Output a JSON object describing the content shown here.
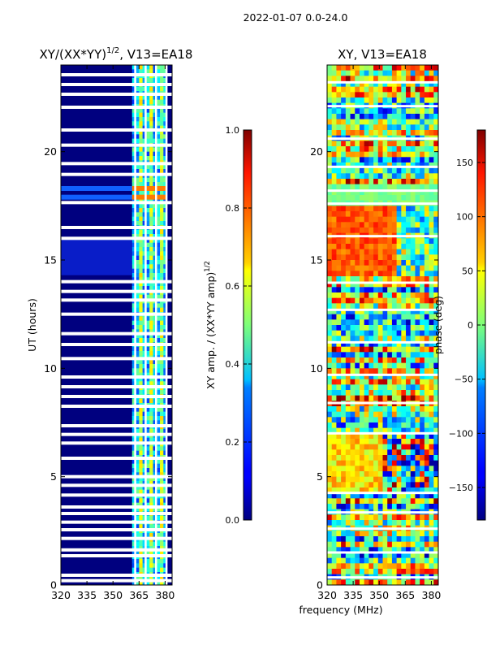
{
  "figure": {
    "suptitle": "2022-01-07 0.0-24.0",
    "shared_xlabel": "frequency (MHz)",
    "shared_ylabel": "UT (hours)"
  },
  "chart_data": [
    {
      "type": "heatmap",
      "title_main": "XY/(XX*YY)",
      "title_exp": "1/2",
      "title_tail": ", V13=EA18",
      "xlabel": "frequency (MHz)",
      "ylabel": "UT (hours)",
      "xlim": [
        320,
        384
      ],
      "ylim": [
        0,
        24
      ],
      "xticks": [
        320,
        335,
        350,
        365,
        380
      ],
      "yticks": [
        0,
        5,
        10,
        15,
        20
      ],
      "colorbar": {
        "label_main": "XY amp. / (XX*YY amp)",
        "label_exp": "1/2",
        "range": [
          0.0,
          1.0
        ],
        "ticks": [
          "0.0",
          "0.2",
          "0.4",
          "0.6",
          "0.8",
          "1.0"
        ],
        "colormap": "jet"
      },
      "active_band_mhz": [
        361,
        381
      ],
      "flagged_ut_hours": [
        0.2,
        0.45,
        1.35,
        1.62,
        2.15,
        2.55,
        2.9,
        3.3,
        3.6,
        4.15,
        4.6,
        5.0,
        5.85,
        6.55,
        6.95,
        7.35,
        8.25,
        8.7,
        9.15,
        9.6,
        10.45,
        11.1,
        11.6,
        12.5,
        13.15,
        13.55,
        14.0,
        16.0,
        16.5,
        17.65,
        18.95,
        19.45,
        20.3,
        21.0,
        22.05,
        22.65,
        23.1,
        23.55
      ],
      "rfi_bright_ut_hours": [
        17.9,
        18.3
      ]
    },
    {
      "type": "heatmap",
      "title_main": "XY, V13=EA18",
      "title_exp": "",
      "title_tail": "",
      "xlabel": "frequency (MHz)",
      "ylabel": "UT (hours)",
      "xlim": [
        320,
        384
      ],
      "ylim": [
        0,
        24
      ],
      "xticks": [
        320,
        335,
        350,
        365,
        380
      ],
      "yticks": [
        0,
        5,
        10,
        15,
        20
      ],
      "colorbar": {
        "label_main": "phase (deg)",
        "label_exp": "",
        "range": [
          -180,
          180
        ],
        "ticks": [
          "−150",
          "−100",
          "−50",
          "0",
          "50",
          "100",
          "150"
        ],
        "colormap": "jet"
      },
      "flagged_ut_hours": [
        0.35,
        1.5,
        2.6,
        3.35,
        4.25,
        7.0,
        8.4,
        9.7,
        11.2,
        12.7,
        13.95,
        16.1,
        17.6,
        18.2,
        19.3,
        20.6,
        22.1,
        23.2
      ]
    }
  ]
}
